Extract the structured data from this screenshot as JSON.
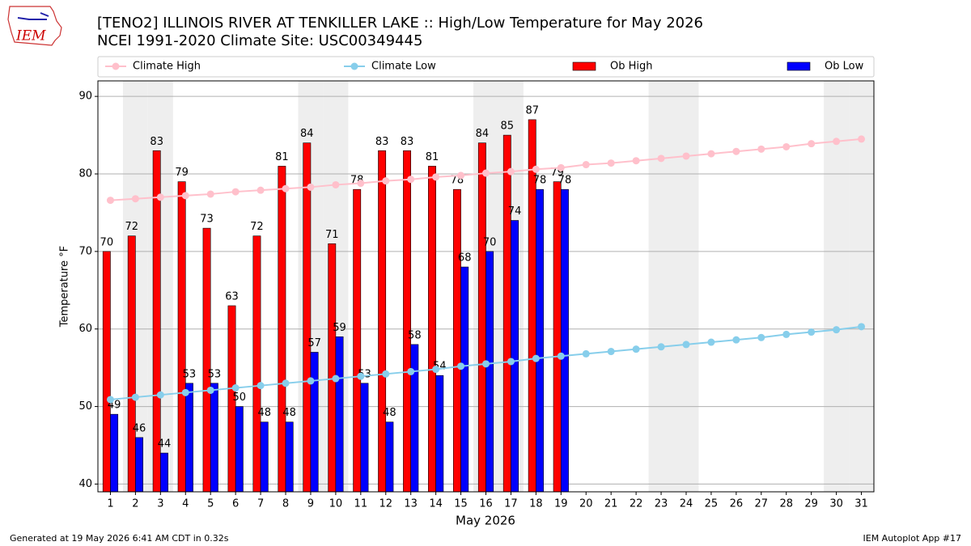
{
  "logo": "IEM",
  "chart_data": {
    "type": "bar",
    "title": "[TENO2] ILLINOIS RIVER  AT TENKILLER LAKE :: High/Low Temperature for May 2026",
    "subtitle": "NCEI 1991-2020 Climate Site: USC00349445",
    "xlabel": "May 2026",
    "ylabel": "Temperature °F",
    "x": [
      1,
      2,
      3,
      4,
      5,
      6,
      7,
      8,
      9,
      10,
      11,
      12,
      13,
      14,
      15,
      16,
      17,
      18,
      19,
      20,
      21,
      22,
      23,
      24,
      25,
      26,
      27,
      28,
      29,
      30,
      31
    ],
    "xlim": [
      0.5,
      31.5
    ],
    "xticks": [
      1,
      2,
      3,
      4,
      5,
      6,
      7,
      8,
      9,
      10,
      11,
      12,
      13,
      14,
      15,
      16,
      17,
      18,
      19,
      20,
      21,
      22,
      23,
      24,
      25,
      26,
      27,
      28,
      29,
      30,
      31
    ],
    "ylim": [
      39,
      92
    ],
    "yticks": [
      40,
      50,
      60,
      70,
      80,
      90
    ],
    "grid": true,
    "shaded_days": [
      2,
      3,
      9,
      10,
      16,
      17,
      23,
      24,
      30,
      31
    ],
    "shade_color": "#eeeeee",
    "series": [
      {
        "name": "Climate High",
        "type": "line",
        "color": "#ffc0cb",
        "values": [
          76.6,
          76.8,
          77.0,
          77.2,
          77.4,
          77.7,
          77.9,
          78.1,
          78.3,
          78.6,
          78.8,
          79.1,
          79.3,
          79.6,
          79.8,
          80.1,
          80.3,
          80.6,
          80.8,
          81.2,
          81.4,
          81.7,
          82.0,
          82.3,
          82.6,
          82.9,
          83.2,
          83.5,
          83.9,
          84.2,
          84.5
        ]
      },
      {
        "name": "Climate Low",
        "type": "line",
        "color": "#87ceeb",
        "values": [
          50.9,
          51.2,
          51.5,
          51.8,
          52.1,
          52.4,
          52.7,
          53.0,
          53.3,
          53.6,
          53.9,
          54.2,
          54.5,
          54.8,
          55.2,
          55.5,
          55.8,
          56.2,
          56.5,
          56.8,
          57.1,
          57.4,
          57.7,
          58.0,
          58.3,
          58.6,
          58.9,
          59.3,
          59.6,
          59.9,
          60.3
        ]
      },
      {
        "name": "Ob High",
        "type": "bar",
        "color": "#ff0000",
        "values": [
          70,
          72,
          83,
          79,
          73,
          63,
          72,
          81,
          84,
          71,
          78,
          83,
          83,
          81,
          78,
          84,
          85,
          87,
          79,
          null,
          null,
          null,
          null,
          null,
          null,
          null,
          null,
          null,
          null,
          null,
          null
        ]
      },
      {
        "name": "Ob Low",
        "type": "bar",
        "color": "#0000ff",
        "values": [
          49,
          46,
          44,
          53,
          53,
          50,
          48,
          48,
          57,
          59,
          53,
          48,
          58,
          54,
          68,
          70,
          74,
          78,
          78,
          null,
          null,
          null,
          null,
          null,
          null,
          null,
          null,
          null,
          null,
          null,
          null
        ]
      }
    ],
    "footer_left": "Generated at 19 May 2026 6:41 AM CDT in 0.32s",
    "footer_right": "IEM Autoplot App #17"
  }
}
